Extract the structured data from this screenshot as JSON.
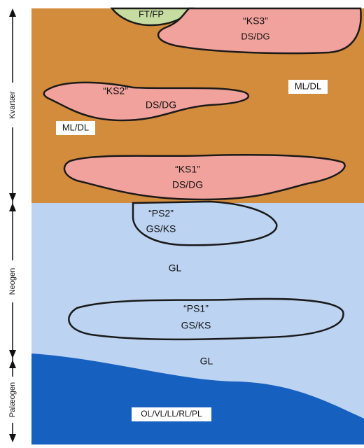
{
  "periods": [
    "Kvartær",
    "Neogen",
    "Palæogen"
  ],
  "lenses": [
    {
      "name": "“KS3”",
      "label": "DS/DG"
    },
    {
      "name": "“KS2”",
      "label": "DS/DG"
    },
    {
      "name": "“KS1”",
      "label": "DS/DG"
    },
    {
      "name": "“PS2”",
      "label": "GS/KS"
    },
    {
      "name": "“PS1”",
      "label": "GS/KS"
    }
  ],
  "labels": [
    "FT/FP",
    "ML/DL",
    "ML/DL",
    "GL",
    "GL",
    "OL/VL/LL/RL/PL"
  ]
}
